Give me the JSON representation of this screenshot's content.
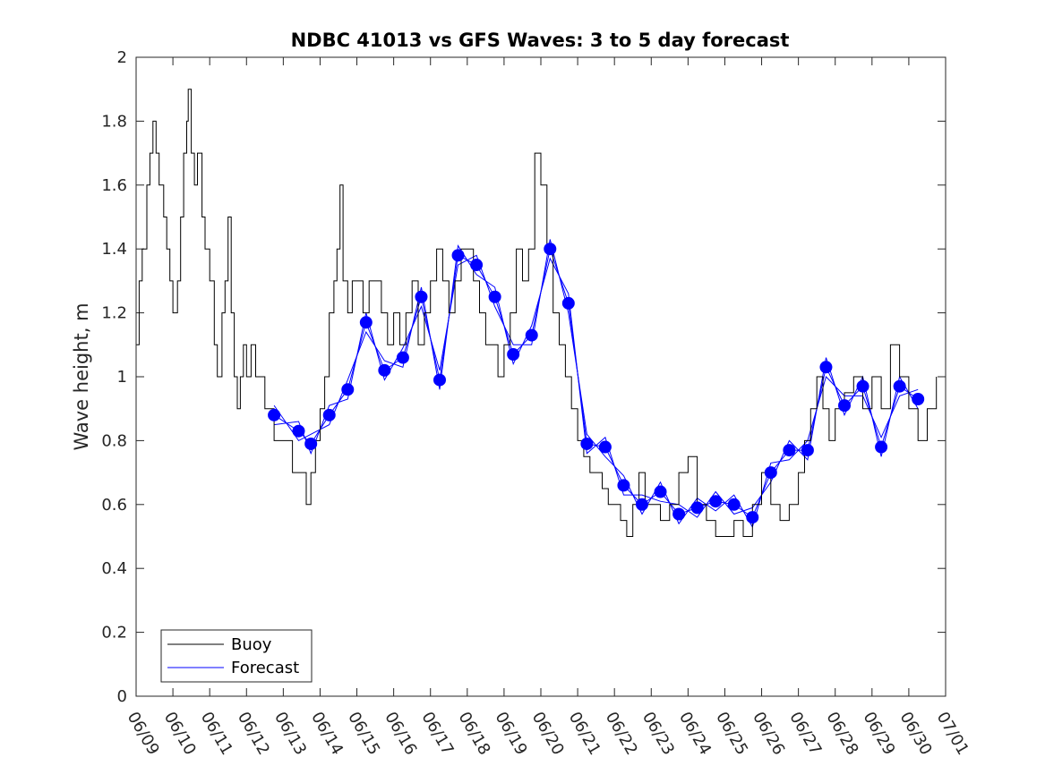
{
  "chart_data": {
    "type": "line",
    "title": "NDBC 41013 vs GFS Waves: 3 to 5 day forecast",
    "xlabel": "",
    "ylabel": "Wave height, m",
    "x_unit": "date (MM/DD)",
    "xlim": [
      "06/09",
      "07/01"
    ],
    "ylim": [
      0,
      2
    ],
    "x_ticks": [
      "06/09",
      "06/10",
      "06/11",
      "06/12",
      "06/13",
      "06/14",
      "06/15",
      "06/16",
      "06/17",
      "06/18",
      "06/19",
      "06/20",
      "06/21",
      "06/22",
      "06/23",
      "06/24",
      "06/25",
      "06/26",
      "06/27",
      "06/28",
      "06/29",
      "06/30",
      "07/01"
    ],
    "y_ticks": [
      "0",
      "0.2",
      "0.4",
      "0.6",
      "0.8",
      "1",
      "1.2",
      "1.4",
      "1.6",
      "1.8",
      "2"
    ],
    "grid": false,
    "legend_position": "bottom-left",
    "legend": [
      "Buoy",
      "Forecast"
    ],
    "series": [
      {
        "name": "Buoy",
        "color": "#000000",
        "style": "line",
        "points": [
          [
            "06/09 00:00",
            1.1
          ],
          [
            "06/09 02:00",
            1.3
          ],
          [
            "06/09 04:00",
            1.4
          ],
          [
            "06/09 07:00",
            1.6
          ],
          [
            "06/09 09:00",
            1.7
          ],
          [
            "06/09 11:00",
            1.8
          ],
          [
            "06/09 13:00",
            1.7
          ],
          [
            "06/09 15:00",
            1.6
          ],
          [
            "06/09 18:00",
            1.5
          ],
          [
            "06/09 20:00",
            1.4
          ],
          [
            "06/09 22:00",
            1.3
          ],
          [
            "06/10 00:00",
            1.2
          ],
          [
            "06/10 03:00",
            1.3
          ],
          [
            "06/10 05:00",
            1.5
          ],
          [
            "06/10 07:00",
            1.7
          ],
          [
            "06/10 09:00",
            1.8
          ],
          [
            "06/10 10:00",
            1.9
          ],
          [
            "06/10 12:00",
            1.7
          ],
          [
            "06/10 14:00",
            1.6
          ],
          [
            "06/10 16:00",
            1.7
          ],
          [
            "06/10 19:00",
            1.5
          ],
          [
            "06/10 21:00",
            1.4
          ],
          [
            "06/11 00:00",
            1.3
          ],
          [
            "06/11 03:00",
            1.1
          ],
          [
            "06/11 05:00",
            1.0
          ],
          [
            "06/11 08:00",
            1.2
          ],
          [
            "06/11 10:00",
            1.3
          ],
          [
            "06/11 12:00",
            1.5
          ],
          [
            "06/11 14:00",
            1.2
          ],
          [
            "06/11 16:00",
            1.0
          ],
          [
            "06/11 18:00",
            0.9
          ],
          [
            "06/11 20:00",
            1.0
          ],
          [
            "06/11 22:00",
            1.1
          ],
          [
            "06/12 00:00",
            1.0
          ],
          [
            "06/12 03:00",
            1.1
          ],
          [
            "06/12 06:00",
            1.0
          ],
          [
            "06/12 09:00",
            1.0
          ],
          [
            "06/12 12:00",
            0.9
          ],
          [
            "06/12 15:00",
            0.9
          ],
          [
            "06/12 18:00",
            0.8
          ],
          [
            "06/12 21:00",
            0.8
          ],
          [
            "06/13 00:00",
            0.8
          ],
          [
            "06/13 03:00",
            0.8
          ],
          [
            "06/13 06:00",
            0.7
          ],
          [
            "06/13 09:00",
            0.7
          ],
          [
            "06/13 12:00",
            0.7
          ],
          [
            "06/13 15:00",
            0.6
          ],
          [
            "06/13 18:00",
            0.7
          ],
          [
            "06/13 21:00",
            0.8
          ],
          [
            "06/14 00:00",
            0.9
          ],
          [
            "06/14 03:00",
            1.0
          ],
          [
            "06/14 06:00",
            1.2
          ],
          [
            "06/14 09:00",
            1.3
          ],
          [
            "06/14 11:00",
            1.4
          ],
          [
            "06/14 13:00",
            1.6
          ],
          [
            "06/14 15:00",
            1.3
          ],
          [
            "06/14 18:00",
            1.2
          ],
          [
            "06/14 21:00",
            1.3
          ],
          [
            "06/15 00:00",
            1.3
          ],
          [
            "06/15 04:00",
            1.2
          ],
          [
            "06/15 08:00",
            1.3
          ],
          [
            "06/15 12:00",
            1.3
          ],
          [
            "06/15 16:00",
            1.2
          ],
          [
            "06/15 20:00",
            1.1
          ],
          [
            "06/16 00:00",
            1.2
          ],
          [
            "06/16 04:00",
            1.1
          ],
          [
            "06/16 08:00",
            1.2
          ],
          [
            "06/16 12:00",
            1.3
          ],
          [
            "06/16 16:00",
            1.1
          ],
          [
            "06/16 20:00",
            1.2
          ],
          [
            "06/17 00:00",
            1.3
          ],
          [
            "06/17 04:00",
            1.4
          ],
          [
            "06/17 08:00",
            1.3
          ],
          [
            "06/17 12:00",
            1.2
          ],
          [
            "06/17 16:00",
            1.3
          ],
          [
            "06/17 20:00",
            1.4
          ],
          [
            "06/18 00:00",
            1.4
          ],
          [
            "06/18 04:00",
            1.3
          ],
          [
            "06/18 08:00",
            1.2
          ],
          [
            "06/18 12:00",
            1.1
          ],
          [
            "06/18 16:00",
            1.1
          ],
          [
            "06/18 20:00",
            1.0
          ],
          [
            "06/19 00:00",
            1.1
          ],
          [
            "06/19 04:00",
            1.2
          ],
          [
            "06/19 08:00",
            1.4
          ],
          [
            "06/19 12:00",
            1.3
          ],
          [
            "06/19 16:00",
            1.4
          ],
          [
            "06/19 20:00",
            1.7
          ],
          [
            "06/20 00:00",
            1.6
          ],
          [
            "06/20 04:00",
            1.4
          ],
          [
            "06/20 08:00",
            1.2
          ],
          [
            "06/20 12:00",
            1.1
          ],
          [
            "06/20 16:00",
            1.0
          ],
          [
            "06/20 20:00",
            0.9
          ],
          [
            "06/21 00:00",
            0.8
          ],
          [
            "06/21 04:00",
            0.75
          ],
          [
            "06/21 08:00",
            0.7
          ],
          [
            "06/21 12:00",
            0.7
          ],
          [
            "06/21 16:00",
            0.65
          ],
          [
            "06/21 20:00",
            0.6
          ],
          [
            "06/22 00:00",
            0.6
          ],
          [
            "06/22 04:00",
            0.55
          ],
          [
            "06/22 08:00",
            0.5
          ],
          [
            "06/22 12:00",
            0.6
          ],
          [
            "06/22 16:00",
            0.7
          ],
          [
            "06/22 20:00",
            0.6
          ],
          [
            "06/23 00:00",
            0.6
          ],
          [
            "06/23 06:00",
            0.55
          ],
          [
            "06/23 12:00",
            0.6
          ],
          [
            "06/23 18:00",
            0.7
          ],
          [
            "06/24 00:00",
            0.75
          ],
          [
            "06/24 06:00",
            0.6
          ],
          [
            "06/24 12:00",
            0.55
          ],
          [
            "06/24 18:00",
            0.5
          ],
          [
            "06/25 00:00",
            0.5
          ],
          [
            "06/25 06:00",
            0.55
          ],
          [
            "06/25 12:00",
            0.5
          ],
          [
            "06/25 18:00",
            0.6
          ],
          [
            "06/26 00:00",
            0.7
          ],
          [
            "06/26 06:00",
            0.6
          ],
          [
            "06/26 12:00",
            0.55
          ],
          [
            "06/26 18:00",
            0.6
          ],
          [
            "06/27 00:00",
            0.7
          ],
          [
            "06/27 04:00",
            0.8
          ],
          [
            "06/27 08:00",
            0.9
          ],
          [
            "06/27 12:00",
            1.0
          ],
          [
            "06/27 16:00",
            0.9
          ],
          [
            "06/27 20:00",
            0.8
          ],
          [
            "06/28 00:00",
            0.9
          ],
          [
            "06/28 06:00",
            0.95
          ],
          [
            "06/28 12:00",
            1.0
          ],
          [
            "06/28 18:00",
            0.9
          ],
          [
            "06/29 00:00",
            1.0
          ],
          [
            "06/29 06:00",
            0.9
          ],
          [
            "06/29 12:00",
            1.1
          ],
          [
            "06/29 18:00",
            1.0
          ],
          [
            "06/30 00:00",
            0.9
          ],
          [
            "06/30 06:00",
            0.8
          ],
          [
            "06/30 12:00",
            0.9
          ],
          [
            "06/30 18:00",
            1.0
          ]
        ]
      },
      {
        "name": "Forecast",
        "color": "#0000ff",
        "style": "lines+markers",
        "markers": [
          [
            "06/12 18:00",
            0.88
          ],
          [
            "06/13 10:00",
            0.83
          ],
          [
            "06/13 18:00",
            0.79
          ],
          [
            "06/14 06:00",
            0.88
          ],
          [
            "06/14 18:00",
            0.96
          ],
          [
            "06/15 06:00",
            1.17
          ],
          [
            "06/15 18:00",
            1.02
          ],
          [
            "06/16 06:00",
            1.06
          ],
          [
            "06/16 18:00",
            1.25
          ],
          [
            "06/17 06:00",
            0.99
          ],
          [
            "06/17 18:00",
            1.38
          ],
          [
            "06/18 06:00",
            1.35
          ],
          [
            "06/18 18:00",
            1.25
          ],
          [
            "06/19 06:00",
            1.07
          ],
          [
            "06/19 18:00",
            1.13
          ],
          [
            "06/20 06:00",
            1.4
          ],
          [
            "06/20 18:00",
            1.23
          ],
          [
            "06/21 06:00",
            0.79
          ],
          [
            "06/21 18:00",
            0.78
          ],
          [
            "06/22 06:00",
            0.66
          ],
          [
            "06/22 18:00",
            0.6
          ],
          [
            "06/23 06:00",
            0.64
          ],
          [
            "06/23 18:00",
            0.57
          ],
          [
            "06/24 06:00",
            0.59
          ],
          [
            "06/24 18:00",
            0.61
          ],
          [
            "06/25 06:00",
            0.6
          ],
          [
            "06/25 18:00",
            0.56
          ],
          [
            "06/26 06:00",
            0.7
          ],
          [
            "06/26 18:00",
            0.77
          ],
          [
            "06/27 06:00",
            0.77
          ],
          [
            "06/27 18:00",
            1.03
          ],
          [
            "06/28 06:00",
            0.91
          ],
          [
            "06/28 18:00",
            0.97
          ],
          [
            "06/29 06:00",
            0.78
          ],
          [
            "06/29 18:00",
            0.97
          ],
          [
            "06/30 06:00",
            0.93
          ]
        ]
      }
    ]
  }
}
